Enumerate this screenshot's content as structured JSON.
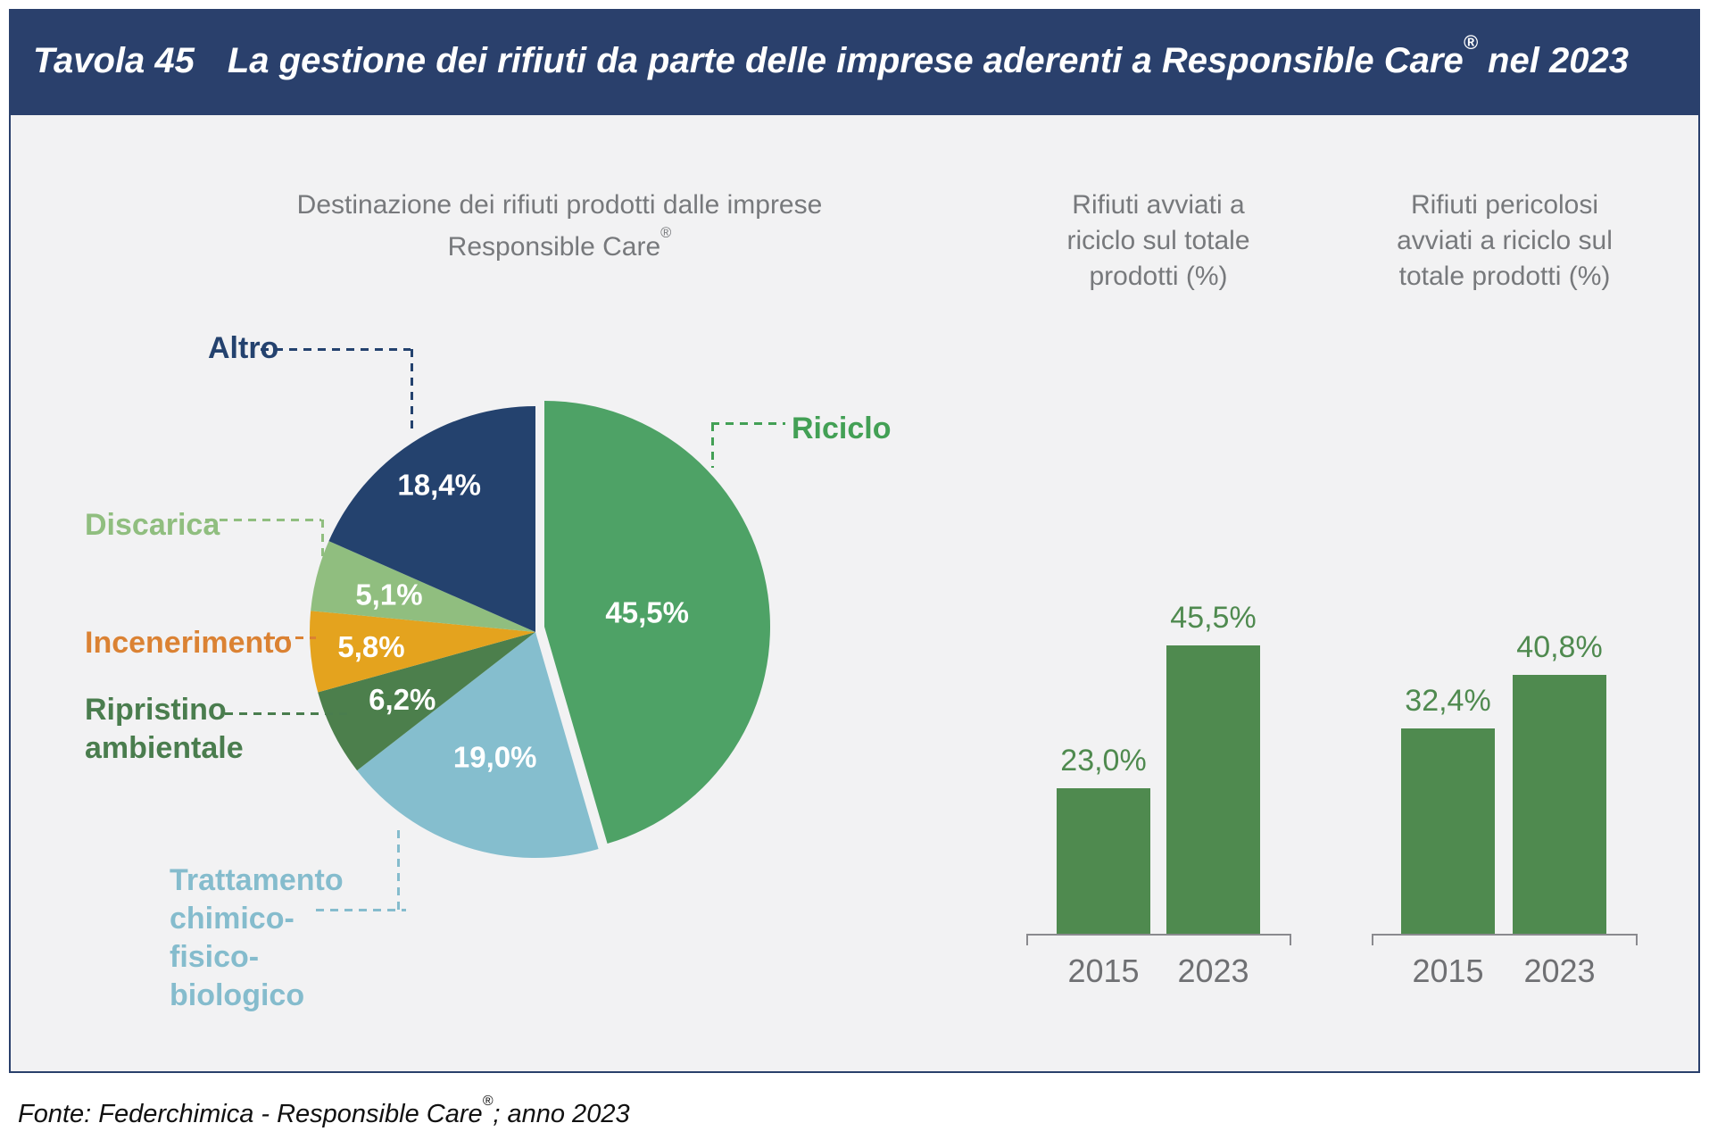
{
  "header": {
    "label": "Tavola 45",
    "title_pre": "La gestione dei rifiuti da parte delle imprese aderenti a Responsible Care",
    "title_sup": "®",
    "title_post": " nel 2023"
  },
  "footer": {
    "pre": "Fonte: Federchimica - Responsible Care",
    "sup": "®",
    "post": "; anno 2023"
  },
  "colors": {
    "header_bg": "#2A406C",
    "panel_bg": "#F2F2F3",
    "title_color": "#77797C",
    "axis_color": "#8A8A8E",
    "axis_label_color": "#6F7073",
    "value_label_white": "#FFFFFF"
  },
  "chart_data": [
    {
      "type": "pie",
      "title": "Destinazione dei rifiuti prodotti dalle imprese Responsible Care®",
      "title_line1": "Destinazione dei rifiuti prodotti dalle imprese",
      "title_line2_pre": "Responsible Care",
      "title_line2_sup": "®",
      "unit": "%",
      "slices": [
        {
          "label": "Riciclo",
          "value": 45.5,
          "display": "45,5%",
          "color": "#4EA266",
          "label_color": "#43A055",
          "exploded": true
        },
        {
          "label": "Trattamento chimico-fisico-biologico",
          "value": 19.0,
          "display": "19,0%",
          "color": "#85BECE",
          "label_color": "#85BCCD",
          "exploded": false
        },
        {
          "label": "Ripristino ambientale",
          "value": 6.2,
          "display": "6,2%",
          "color": "#4C7F4C",
          "label_color": "#4A7D4E",
          "exploded": false
        },
        {
          "label": "Incenerimento",
          "value": 5.8,
          "display": "5,8%",
          "color": "#E4A31E",
          "label_color": "#DB8233",
          "exploded": false
        },
        {
          "label": "Discarica",
          "value": 5.1,
          "display": "5,1%",
          "color": "#90BE7F",
          "label_color": "#90BE7F",
          "exploded": false
        },
        {
          "label": "Altro",
          "value": 18.4,
          "display": "18,4%",
          "color": "#24426E",
          "label_color": "#24426E",
          "exploded": false
        }
      ]
    },
    {
      "type": "bar",
      "title": "Rifiuti avviati a riciclo sul totale prodotti (%)",
      "title_lines": [
        "Rifiuti avviati a",
        "riciclo sul totale",
        "prodotti (%)"
      ],
      "categories": [
        "2015",
        "2023"
      ],
      "values": [
        23.0,
        45.5
      ],
      "display_values": [
        "23,0%",
        "45,5%"
      ],
      "bar_color": "#4F8A4F",
      "ylim": [
        0,
        50
      ],
      "grid": false,
      "legend": "none"
    },
    {
      "type": "bar",
      "title": "Rifiuti pericolosi avviati a riciclo sul totale prodotti (%)",
      "title_lines": [
        "Rifiuti pericolosi",
        "avviati a riciclo sul",
        "totale prodotti (%)"
      ],
      "categories": [
        "2015",
        "2023"
      ],
      "values": [
        32.4,
        40.8
      ],
      "display_values": [
        "32,4%",
        "40,8%"
      ],
      "bar_color": "#4F8A4F",
      "ylim": [
        0,
        50
      ],
      "grid": false,
      "legend": "none"
    }
  ]
}
